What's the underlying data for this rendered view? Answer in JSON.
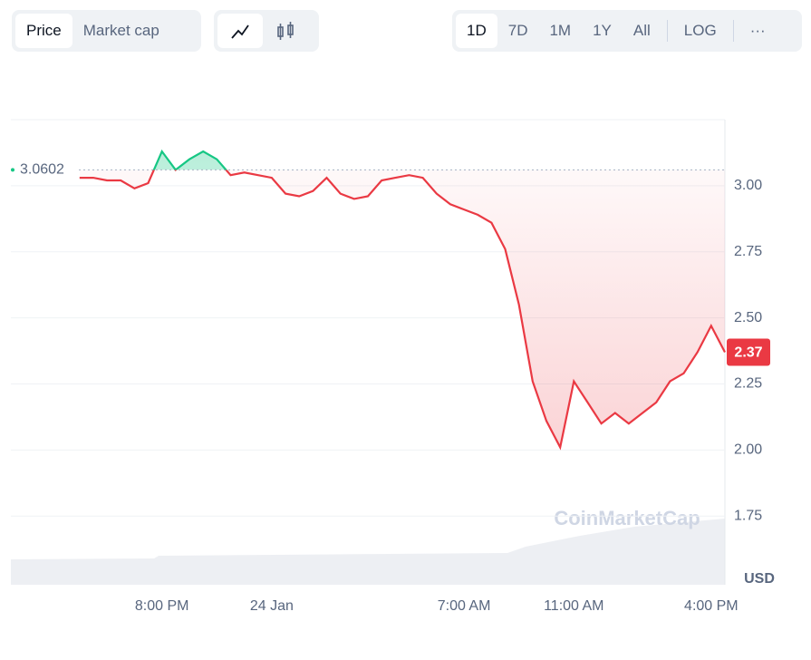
{
  "toolbar": {
    "metric_tabs": [
      "Price",
      "Market cap"
    ],
    "ranges": [
      "1D",
      "7D",
      "1M",
      "1Y",
      "All"
    ],
    "scale_button": "LOG",
    "more": "···"
  },
  "chart_data": {
    "type": "line",
    "categories": [
      null,
      null,
      null,
      null,
      null,
      null,
      "8:00 PM",
      null,
      null,
      null,
      null,
      null,
      null,
      null,
      "24 Jan",
      null,
      null,
      null,
      null,
      null,
      null,
      null,
      null,
      null,
      null,
      null,
      null,
      null,
      "7:00 AM",
      null,
      null,
      null,
      null,
      null,
      null,
      null,
      "11:00 AM",
      null,
      null,
      null,
      null,
      null,
      null,
      null,
      null,
      null,
      "4:00 PM",
      null
    ],
    "values": [
      3.03,
      3.03,
      3.02,
      3.02,
      2.99,
      3.01,
      3.13,
      3.06,
      3.1,
      3.13,
      3.1,
      3.04,
      3.05,
      3.04,
      3.03,
      2.97,
      2.96,
      2.98,
      3.03,
      2.97,
      2.95,
      2.96,
      3.02,
      3.03,
      3.04,
      3.03,
      2.97,
      2.93,
      2.91,
      2.89,
      2.86,
      2.76,
      2.55,
      2.26,
      2.11,
      2.01,
      2.26,
      2.18,
      2.1,
      2.14,
      2.1,
      2.14,
      2.18,
      2.26,
      2.29,
      2.37,
      2.47,
      2.37
    ],
    "up_color": "#16c784",
    "down_color": "#ea3943",
    "reference": 3.0602,
    "last_price": 2.37,
    "ylim": [
      1.49,
      3.25
    ],
    "yticks": [
      {
        "value": 1.75,
        "label": "1.75"
      },
      {
        "value": 2.0,
        "label": "2.00"
      },
      {
        "value": 2.25,
        "label": "2.25"
      },
      {
        "value": 2.5,
        "label": "2.50"
      },
      {
        "value": 2.75,
        "label": "2.75"
      },
      {
        "value": 3.0,
        "label": "3.00"
      }
    ],
    "y_unit": "USD",
    "watermark": "CoinMarketCap",
    "grid": true
  }
}
